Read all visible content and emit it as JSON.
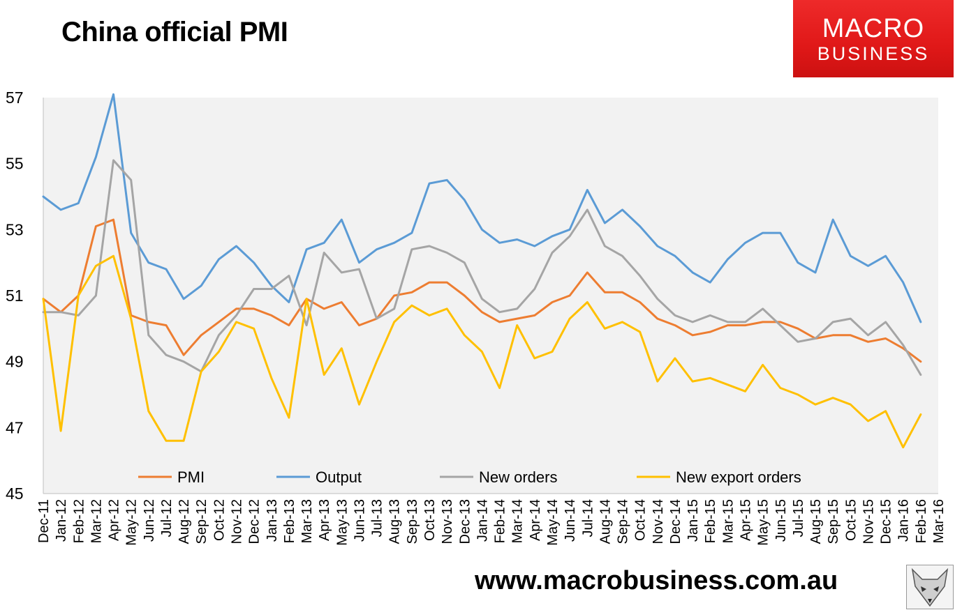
{
  "title": "China official PMI",
  "logo": {
    "line1": "MACRO",
    "line2": "BUSINESS",
    "color": "#e8201f"
  },
  "footer_url": "www.macrobusiness.com.au",
  "footer_icon": "fox-head-icon",
  "chart_data": {
    "type": "line",
    "title": "China official PMI",
    "xlabel": "",
    "ylabel": "",
    "ylim": [
      45,
      57
    ],
    "yticks": [
      45,
      47,
      49,
      51,
      53,
      55,
      57
    ],
    "grid": false,
    "plot_background": "#f2f2f2",
    "legend_position": "bottom-inside",
    "categories": [
      "Dec-11",
      "Jan-12",
      "Feb-12",
      "Mar-12",
      "Apr-12",
      "May-12",
      "Jun-12",
      "Jul-12",
      "Aug-12",
      "Sep-12",
      "Oct-12",
      "Nov-12",
      "Dec-12",
      "Jan-13",
      "Feb-13",
      "Mar-13",
      "Apr-13",
      "May-13",
      "Jun-13",
      "Jul-13",
      "Aug-13",
      "Sep-13",
      "Oct-13",
      "Nov-13",
      "Dec-13",
      "Jan-14",
      "Feb-14",
      "Mar-14",
      "Apr-14",
      "May-14",
      "Jun-14",
      "Jul-14",
      "Aug-14",
      "Sep-14",
      "Oct-14",
      "Nov-14",
      "Dec-14",
      "Jan-15",
      "Feb-15",
      "Mar-15",
      "Apr-15",
      "May-15",
      "Jun-15",
      "Jul-15",
      "Aug-15",
      "Sep-15",
      "Oct-15",
      "Nov-15",
      "Dec-15",
      "Jan-16",
      "Feb-16",
      "Mar-16"
    ],
    "series": [
      {
        "name": "PMI",
        "color": "#ed7d31",
        "values": [
          50.9,
          50.5,
          51.0,
          53.1,
          53.3,
          50.4,
          50.2,
          50.1,
          49.2,
          49.8,
          50.2,
          50.6,
          50.6,
          50.4,
          50.1,
          50.9,
          50.6,
          50.8,
          50.1,
          50.3,
          51.0,
          51.1,
          51.4,
          51.4,
          51.0,
          50.5,
          50.2,
          50.3,
          50.4,
          50.8,
          51.0,
          51.7,
          51.1,
          51.1,
          50.8,
          50.3,
          50.1,
          49.8,
          49.9,
          50.1,
          50.1,
          50.2,
          50.2,
          50.0,
          49.7,
          49.8,
          49.8,
          49.6,
          49.7,
          49.4,
          49.0,
          null
        ]
      },
      {
        "name": "Output",
        "color": "#5b9bd5",
        "values": [
          54.0,
          53.6,
          53.8,
          55.2,
          57.1,
          52.9,
          52.0,
          51.8,
          50.9,
          51.3,
          52.1,
          52.5,
          52.0,
          51.3,
          50.8,
          52.4,
          52.6,
          53.3,
          52.0,
          52.4,
          52.6,
          52.9,
          54.4,
          54.5,
          53.9,
          53.0,
          52.6,
          52.7,
          52.5,
          52.8,
          53.0,
          54.2,
          53.2,
          53.6,
          53.1,
          52.5,
          52.2,
          51.7,
          51.4,
          52.1,
          52.6,
          52.9,
          52.9,
          52.0,
          51.7,
          53.3,
          52.2,
          51.9,
          52.2,
          51.4,
          50.2,
          null
        ]
      },
      {
        "name": "New orders",
        "color": "#a5a5a5",
        "values": [
          50.5,
          50.5,
          50.4,
          51.0,
          55.1,
          54.5,
          49.8,
          49.2,
          49.0,
          48.7,
          49.8,
          50.4,
          51.2,
          51.2,
          51.6,
          50.1,
          52.3,
          51.7,
          51.8,
          50.3,
          50.6,
          52.4,
          52.5,
          52.3,
          52.0,
          50.9,
          50.5,
          50.6,
          51.2,
          52.3,
          52.8,
          53.6,
          52.5,
          52.2,
          51.6,
          50.9,
          50.4,
          50.2,
          50.4,
          50.2,
          50.2,
          50.6,
          50.1,
          49.6,
          49.7,
          50.2,
          50.3,
          49.8,
          50.2,
          49.5,
          48.6,
          null
        ]
      },
      {
        "name": "New export orders",
        "color": "#ffc000",
        "values": [
          50.9,
          46.9,
          51.0,
          51.9,
          52.2,
          50.3,
          47.5,
          46.6,
          46.6,
          48.7,
          49.3,
          50.2,
          50.0,
          48.5,
          47.3,
          50.9,
          48.6,
          49.4,
          47.7,
          49.0,
          50.2,
          50.7,
          50.4,
          50.6,
          49.8,
          49.3,
          48.2,
          50.1,
          49.1,
          49.3,
          50.3,
          50.8,
          50.0,
          50.2,
          49.9,
          48.4,
          49.1,
          48.4,
          48.5,
          48.3,
          48.1,
          48.9,
          48.2,
          48.0,
          47.7,
          47.9,
          47.7,
          47.2,
          47.5,
          46.4,
          47.4,
          null
        ]
      }
    ]
  }
}
